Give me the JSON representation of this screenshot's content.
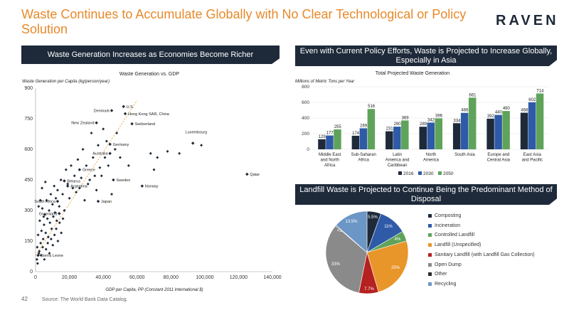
{
  "page": {
    "title": "Waste Continues to Accumulate Globally with No Clear Technological or Policy Solution",
    "logo": "RAVEN",
    "page_number": "42",
    "source": "Source: The World Bank Data Catalog."
  },
  "banners": {
    "left": "Waste Generation Increases as Economies Become Richer",
    "right_top": "Even with Current Policy Efforts, Waste is Projected to Increase Globally, Especially in Asia",
    "right_bottom": "Landfill Waste is Projected to Continue Being the Predominant Method of Disposal"
  },
  "colors": {
    "navy": "#1e2a3a",
    "blue": "#2e5aa8",
    "green": "#5fa35a",
    "orange": "#e8952a",
    "red": "#b52020",
    "gray": "#8a8a8a",
    "dark": "#2a2a2a",
    "lightblue": "#6b96c6"
  },
  "chart_data": [
    {
      "type": "scatter",
      "title": "Waste Generation vs. GDP",
      "xlabel": "GDP per Capita, PP (Constant 2011 International $)",
      "ylabel": "Waste Generation per Capita (kg/person/year)",
      "xlim": [
        0,
        140000
      ],
      "ylim": [
        0,
        900
      ],
      "xticks": [
        "0",
        "20,000",
        "40,000",
        "60,000",
        "80,000",
        "100,000",
        "120,000",
        "140,000"
      ],
      "yticks": [
        "0",
        "150",
        "300",
        "450",
        "600",
        "750",
        "900"
      ],
      "trendline": true,
      "labeled_points": [
        {
          "name": "U.S.",
          "x": 52000,
          "y": 810
        },
        {
          "name": "Denmark",
          "x": 45000,
          "y": 790
        },
        {
          "name": "Hong Kong SAR, China",
          "x": 53000,
          "y": 775
        },
        {
          "name": "New Zealand",
          "x": 36000,
          "y": 730
        },
        {
          "name": "Switzerland",
          "x": 57000,
          "y": 725
        },
        {
          "name": "Luxembourg",
          "x": 93000,
          "y": 630
        },
        {
          "name": "Germany",
          "x": 44000,
          "y": 625
        },
        {
          "name": "Australia",
          "x": 44000,
          "y": 580
        },
        {
          "name": "Qatar",
          "x": 125000,
          "y": 478
        },
        {
          "name": "Greece",
          "x": 26000,
          "y": 500
        },
        {
          "name": "Sweden",
          "x": 46000,
          "y": 450
        },
        {
          "name": "Belarus",
          "x": 17000,
          "y": 445
        },
        {
          "name": "Argentina",
          "x": 19000,
          "y": 420
        },
        {
          "name": "Norway",
          "x": 63000,
          "y": 420
        },
        {
          "name": "South Africa",
          "x": 13000,
          "y": 345
        },
        {
          "name": "Japan",
          "x": 37000,
          "y": 345
        },
        {
          "name": "Greenland",
          "x": 14000,
          "y": 285
        },
        {
          "name": "Sierra Leone",
          "x": 1500,
          "y": 80
        }
      ],
      "points": [
        [
          1000,
          120
        ],
        [
          1500,
          180
        ],
        [
          2000,
          90
        ],
        [
          2500,
          250
        ],
        [
          3000,
          140
        ],
        [
          3500,
          200
        ],
        [
          4000,
          310
        ],
        [
          4500,
          160
        ],
        [
          5000,
          230
        ],
        [
          5500,
          280
        ],
        [
          6000,
          190
        ],
        [
          6500,
          350
        ],
        [
          7000,
          260
        ],
        [
          7500,
          170
        ],
        [
          8000,
          300
        ],
        [
          8500,
          240
        ],
        [
          9000,
          380
        ],
        [
          9500,
          210
        ],
        [
          10000,
          330
        ],
        [
          10500,
          270
        ],
        [
          11000,
          420
        ],
        [
          11500,
          290
        ],
        [
          12000,
          360
        ],
        [
          12500,
          250
        ],
        [
          13000,
          400
        ],
        [
          14000,
          320
        ],
        [
          15000,
          450
        ],
        [
          16000,
          380
        ],
        [
          17000,
          300
        ],
        [
          18000,
          500
        ],
        [
          19000,
          430
        ],
        [
          20000,
          360
        ],
        [
          21000,
          520
        ],
        [
          22000,
          410
        ],
        [
          23000,
          470
        ],
        [
          24000,
          390
        ],
        [
          25000,
          550
        ],
        [
          27000,
          460
        ],
        [
          28000,
          600
        ],
        [
          30000,
          520
        ],
        [
          31000,
          430
        ],
        [
          33000,
          680
        ],
        [
          34000,
          560
        ],
        [
          35000,
          470
        ],
        [
          37000,
          620
        ],
        [
          38000,
          510
        ],
        [
          40000,
          700
        ],
        [
          41000,
          560
        ],
        [
          42000,
          640
        ],
        [
          47000,
          600
        ],
        [
          48000,
          680
        ],
        [
          50000,
          560
        ],
        [
          68000,
          580
        ],
        [
          70000,
          500
        ],
        [
          72000,
          560
        ],
        [
          78000,
          590
        ],
        [
          85000,
          580
        ],
        [
          98000,
          620
        ],
        [
          800,
          60
        ],
        [
          1200,
          40
        ],
        [
          2200,
          100
        ],
        [
          3200,
          80
        ],
        [
          4200,
          120
        ],
        [
          5200,
          60
        ],
        [
          6200,
          110
        ],
        [
          7200,
          140
        ],
        [
          8200,
          90
        ],
        [
          9200,
          160
        ],
        [
          10200,
          130
        ],
        [
          11200,
          180
        ],
        [
          12200,
          210
        ],
        [
          13200,
          150
        ],
        [
          14200,
          240
        ],
        [
          15200,
          190
        ],
        [
          16200,
          260
        ],
        [
          1800,
          320
        ],
        [
          2800,
          350
        ],
        [
          3800,
          410
        ],
        [
          4800,
          270
        ],
        [
          5800,
          440
        ],
        [
          26000,
          410
        ],
        [
          29000,
          350
        ],
        [
          32000,
          450
        ],
        [
          36000,
          400
        ],
        [
          39000,
          470
        ],
        [
          43000,
          520
        ],
        [
          45000,
          380
        ],
        [
          55000,
          520
        ]
      ]
    },
    {
      "type": "bar",
      "title": "Total Projected Waste Generation",
      "ylabel": "Millions of Metric Tons per Year",
      "ylim": [
        0,
        800
      ],
      "yticks": [
        "0",
        "200",
        "400",
        "600",
        "800"
      ],
      "categories": [
        "Middle East and North Africa",
        "Sub-Saharan Africa",
        "Latin America and Caribbean",
        "North America",
        "South Asia",
        "Europe and Central Asia",
        "East Asia and Pacific"
      ],
      "series": [
        {
          "name": "2016",
          "values": [
            129,
            174,
            231,
            289,
            334,
            392,
            468
          ]
        },
        {
          "name": "2030",
          "values": [
            177,
            269,
            290,
            342,
            466,
            440,
            602
          ]
        },
        {
          "name": "2050",
          "values": [
            255,
            516,
            369,
            396,
            661,
            490,
            714
          ]
        }
      ]
    },
    {
      "type": "pie",
      "slices": [
        {
          "name": "Composting",
          "value": 5.5,
          "label": "5.5%"
        },
        {
          "name": "Incineration",
          "value": 11,
          "label": "11%"
        },
        {
          "name": "Controlled Landfill",
          "value": 4,
          "label": "4%"
        },
        {
          "name": "Landfill (Unspecified)",
          "value": 25,
          "label": "25%"
        },
        {
          "name": "Sanitary Landfill (with Landfill Gas Collection)",
          "value": 7.7,
          "label": "7.7%"
        },
        {
          "name": "Open Dump",
          "value": 33,
          "label": "33%"
        },
        {
          "name": "Other",
          "value": 0.3,
          "label": "<1%"
        },
        {
          "name": "Recycling",
          "value": 13.5,
          "label": "13.5%"
        }
      ]
    }
  ]
}
